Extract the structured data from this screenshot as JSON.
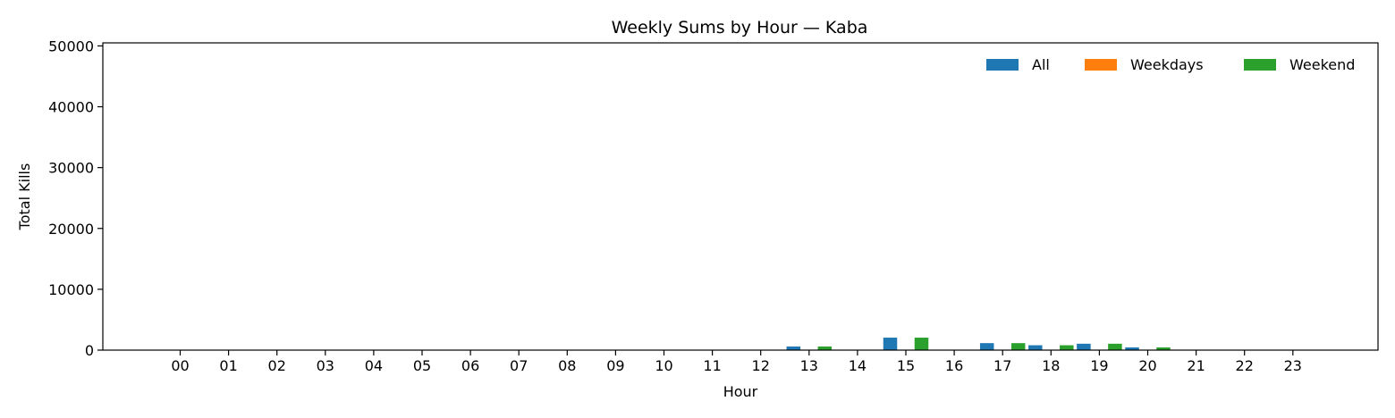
{
  "chart_data": {
    "type": "bar",
    "title": "Weekly Sums by Hour — Kaba",
    "xlabel": "Hour",
    "ylabel": "Total Kills",
    "ylim": [
      0,
      50000
    ],
    "yticks": [
      "0",
      "10000",
      "20000",
      "30000",
      "40000",
      "50000"
    ],
    "categories": [
      "00",
      "01",
      "02",
      "03",
      "04",
      "05",
      "06",
      "07",
      "08",
      "09",
      "10",
      "11",
      "12",
      "13",
      "14",
      "15",
      "16",
      "17",
      "18",
      "19",
      "20",
      "21",
      "22",
      "23"
    ],
    "series": [
      {
        "name": "All",
        "color": "#1f77b4",
        "values": [
          0,
          0,
          0,
          0,
          0,
          0,
          0,
          0,
          0,
          0,
          0,
          0,
          0,
          600,
          0,
          2050,
          0,
          1150,
          800,
          1050,
          450,
          0,
          0,
          0
        ]
      },
      {
        "name": "Weekdays",
        "color": "#ff7f0e",
        "values": [
          0,
          0,
          0,
          0,
          0,
          0,
          0,
          0,
          0,
          0,
          0,
          0,
          0,
          0,
          0,
          0,
          0,
          0,
          0,
          0,
          0,
          0,
          0,
          0
        ]
      },
      {
        "name": "Weekend",
        "color": "#2ca02c",
        "values": [
          0,
          0,
          0,
          0,
          0,
          0,
          0,
          0,
          0,
          0,
          0,
          0,
          0,
          600,
          0,
          2050,
          0,
          1150,
          800,
          1050,
          450,
          0,
          0,
          0
        ]
      }
    ],
    "grid": false,
    "legend": "top-right"
  }
}
